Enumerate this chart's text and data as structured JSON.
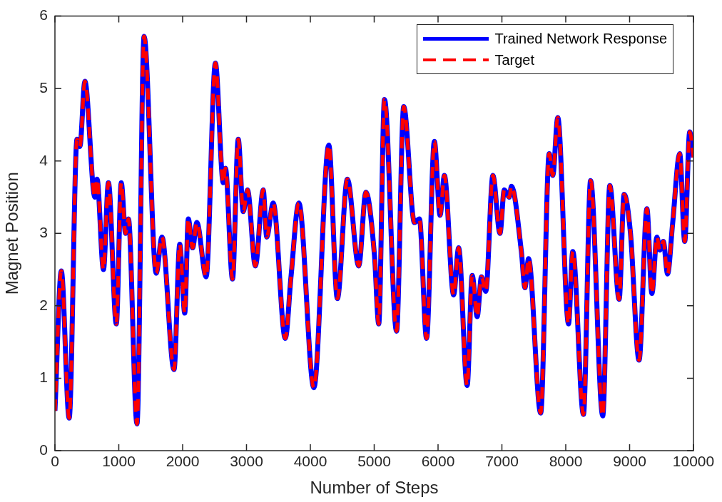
{
  "chart_data": {
    "type": "line",
    "xlabel": "Number of Steps",
    "ylabel": "Magnet Position",
    "x": [
      0,
      100,
      223,
      346,
      391,
      469,
      626,
      659,
      760,
      838,
      961,
      1039,
      1106,
      1151,
      1285,
      1396,
      1586,
      1676,
      1865,
      1955,
      2033,
      2089,
      2156,
      2223,
      2368,
      2513,
      2636,
      2670,
      2781,
      2871,
      2949,
      3016,
      3139,
      3262,
      3317,
      3418,
      3608,
      3697,
      3820,
      4055,
      4289,
      4423,
      4580,
      4758,
      4870,
      5004,
      5071,
      5161,
      5350,
      5462,
      5630,
      5708,
      5820,
      5942,
      6032,
      6099,
      6244,
      6322,
      6456,
      6535,
      6613,
      6680,
      6747,
      6859,
      6970,
      7037,
      7115,
      7149,
      7305,
      7361,
      7417,
      7607,
      7741,
      7797,
      7875,
      8043,
      8110,
      8277,
      8389,
      8579,
      8690,
      8836,
      8914,
      9014,
      9148,
      9271,
      9349,
      9428,
      9472,
      9528,
      9595,
      9673,
      9785,
      9863,
      9941,
      10000
    ],
    "series": [
      {
        "name": "Trained Network Response",
        "color": "#0000ff",
        "line_style": "solid",
        "values": [
          0.55,
          2.48,
          0.45,
          4.3,
          4.2,
          5.1,
          3.5,
          3.75,
          2.5,
          3.7,
          1.75,
          3.7,
          3.0,
          3.2,
          0.37,
          5.72,
          2.45,
          2.95,
          1.12,
          2.85,
          1.9,
          3.2,
          2.8,
          3.15,
          2.4,
          5.35,
          3.7,
          3.9,
          2.37,
          4.3,
          3.3,
          3.6,
          2.55,
          3.6,
          2.95,
          3.42,
          1.55,
          2.4,
          3.42,
          0.87,
          4.22,
          2.1,
          3.75,
          2.55,
          3.57,
          2.7,
          1.75,
          4.85,
          1.65,
          4.75,
          3.15,
          3.2,
          1.55,
          4.27,
          3.25,
          3.8,
          2.15,
          2.8,
          0.9,
          2.42,
          1.85,
          2.4,
          2.2,
          3.8,
          3.0,
          3.6,
          3.5,
          3.65,
          2.75,
          2.25,
          2.65,
          0.52,
          4.1,
          3.8,
          4.6,
          1.75,
          2.75,
          0.5,
          3.73,
          0.48,
          3.66,
          2.09,
          3.54,
          3.0,
          1.25,
          3.34,
          2.17,
          2.95,
          2.77,
          2.89,
          2.44,
          3.13,
          4.1,
          2.89,
          4.4,
          4.05
        ]
      },
      {
        "name": "Target",
        "color": "#ff0000",
        "line_style": "dashed",
        "values": [
          0.55,
          2.48,
          0.45,
          4.3,
          4.2,
          5.1,
          3.5,
          3.75,
          2.5,
          3.7,
          1.75,
          3.7,
          3.0,
          3.2,
          0.37,
          5.72,
          2.45,
          2.95,
          1.12,
          2.85,
          1.9,
          3.2,
          2.8,
          3.15,
          2.4,
          5.35,
          3.7,
          3.9,
          2.37,
          4.3,
          3.3,
          3.6,
          2.55,
          3.6,
          2.95,
          3.42,
          1.55,
          2.4,
          3.42,
          0.87,
          4.22,
          2.1,
          3.75,
          2.55,
          3.57,
          2.7,
          1.75,
          4.85,
          1.65,
          4.75,
          3.15,
          3.2,
          1.55,
          4.27,
          3.25,
          3.8,
          2.15,
          2.8,
          0.9,
          2.42,
          1.85,
          2.4,
          2.2,
          3.8,
          3.0,
          3.6,
          3.5,
          3.65,
          2.75,
          2.25,
          2.65,
          0.52,
          4.1,
          3.8,
          4.6,
          1.75,
          2.75,
          0.5,
          3.73,
          0.48,
          3.66,
          2.09,
          3.54,
          3.0,
          1.25,
          3.34,
          2.17,
          2.95,
          2.77,
          2.89,
          2.44,
          3.13,
          4.1,
          2.89,
          4.4,
          4.05
        ]
      }
    ],
    "xlim": [
      0,
      10000
    ],
    "xticks": [
      0,
      1000,
      2000,
      3000,
      4000,
      5000,
      6000,
      7000,
      8000,
      9000,
      10000
    ],
    "ylim": [
      0,
      6
    ],
    "yticks": [
      0,
      1,
      2,
      3,
      4,
      5,
      6
    ],
    "grid": false,
    "legend": "top right",
    "marker": "none"
  }
}
